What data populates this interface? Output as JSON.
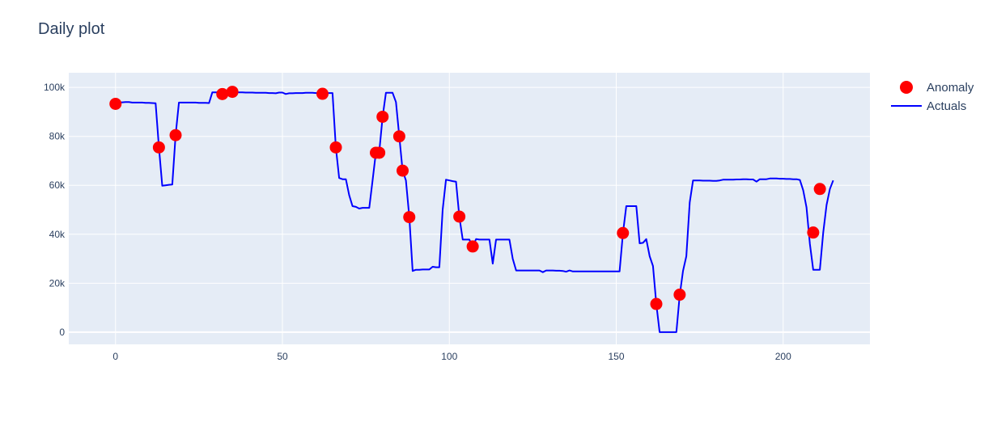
{
  "chart_data": {
    "type": "line",
    "title": "Daily plot",
    "xlabel": "",
    "ylabel": "",
    "xlim": [
      -14,
      226
    ],
    "ylim": [
      -5000,
      106000
    ],
    "x_ticks": [
      0,
      50,
      100,
      150,
      200
    ],
    "x_tick_labels": [
      "0",
      "50",
      "100",
      "150",
      "200"
    ],
    "y_ticks": [
      0,
      20000,
      40000,
      60000,
      80000,
      100000
    ],
    "y_tick_labels": [
      "0",
      "20k",
      "40k",
      "60k",
      "80k",
      "100k"
    ],
    "grid": true,
    "legend_position": "top-right",
    "series": [
      {
        "name": "Actuals",
        "kind": "line",
        "color": "#0000ff",
        "points": [
          [
            0,
            93500
          ],
          [
            1,
            93900
          ],
          [
            2,
            93900
          ],
          [
            3,
            94000
          ],
          [
            4,
            94000
          ],
          [
            5,
            93800
          ],
          [
            6,
            93800
          ],
          [
            7,
            93800
          ],
          [
            8,
            93800
          ],
          [
            9,
            93700
          ],
          [
            10,
            93700
          ],
          [
            11,
            93600
          ],
          [
            12,
            93500
          ],
          [
            13,
            75500
          ],
          [
            14,
            59800
          ],
          [
            15,
            60000
          ],
          [
            16,
            60200
          ],
          [
            17,
            60300
          ],
          [
            18,
            80500
          ],
          [
            19,
            93800
          ],
          [
            20,
            93800
          ],
          [
            21,
            93800
          ],
          [
            22,
            93800
          ],
          [
            23,
            93800
          ],
          [
            24,
            93800
          ],
          [
            25,
            93700
          ],
          [
            26,
            93700
          ],
          [
            27,
            93700
          ],
          [
            28,
            93600
          ],
          [
            29,
            98000
          ],
          [
            30,
            98000
          ],
          [
            31,
            98000
          ],
          [
            32,
            97300
          ],
          [
            33,
            97800
          ],
          [
            34,
            97800
          ],
          [
            35,
            98200
          ],
          [
            36,
            98000
          ],
          [
            37,
            98000
          ],
          [
            38,
            98000
          ],
          [
            39,
            97900
          ],
          [
            40,
            97900
          ],
          [
            41,
            97900
          ],
          [
            42,
            97800
          ],
          [
            43,
            97800
          ],
          [
            44,
            97800
          ],
          [
            45,
            97800
          ],
          [
            46,
            97700
          ],
          [
            47,
            97700
          ],
          [
            48,
            97600
          ],
          [
            49,
            97900
          ],
          [
            50,
            97900
          ],
          [
            51,
            97300
          ],
          [
            52,
            97600
          ],
          [
            53,
            97600
          ],
          [
            54,
            97700
          ],
          [
            55,
            97700
          ],
          [
            56,
            97700
          ],
          [
            57,
            97800
          ],
          [
            58,
            97800
          ],
          [
            59,
            97800
          ],
          [
            60,
            97700
          ],
          [
            61,
            97700
          ],
          [
            62,
            97400
          ],
          [
            63,
            97700
          ],
          [
            64,
            97700
          ],
          [
            65,
            97700
          ],
          [
            66,
            75500
          ],
          [
            67,
            63000
          ],
          [
            68,
            62500
          ],
          [
            69,
            62500
          ],
          [
            70,
            56000
          ],
          [
            71,
            51500
          ],
          [
            72,
            51200
          ],
          [
            73,
            50500
          ],
          [
            74,
            50800
          ],
          [
            75,
            50800
          ],
          [
            76,
            50800
          ],
          [
            77,
            62000
          ],
          [
            78,
            73500
          ],
          [
            79,
            73500
          ],
          [
            80,
            88000
          ],
          [
            81,
            97800
          ],
          [
            82,
            97800
          ],
          [
            83,
            97800
          ],
          [
            84,
            94000
          ],
          [
            85,
            80000
          ],
          [
            86,
            66000
          ],
          [
            87,
            62000
          ],
          [
            88,
            47000
          ],
          [
            89,
            25000
          ],
          [
            90,
            25500
          ],
          [
            91,
            25500
          ],
          [
            92,
            25600
          ],
          [
            93,
            25600
          ],
          [
            94,
            25600
          ],
          [
            95,
            26700
          ],
          [
            96,
            26500
          ],
          [
            97,
            26500
          ],
          [
            98,
            50000
          ],
          [
            99,
            62300
          ],
          [
            100,
            62000
          ],
          [
            101,
            61700
          ],
          [
            102,
            61500
          ],
          [
            103,
            47200
          ],
          [
            104,
            37800
          ],
          [
            105,
            37800
          ],
          [
            106,
            37800
          ],
          [
            107,
            35000
          ],
          [
            108,
            38000
          ],
          [
            109,
            37800
          ],
          [
            110,
            37800
          ],
          [
            111,
            37800
          ],
          [
            112,
            37800
          ],
          [
            113,
            28000
          ],
          [
            114,
            37800
          ],
          [
            115,
            37800
          ],
          [
            116,
            37800
          ],
          [
            117,
            37800
          ],
          [
            118,
            37800
          ],
          [
            119,
            30000
          ],
          [
            120,
            25200
          ],
          [
            121,
            25200
          ],
          [
            122,
            25200
          ],
          [
            123,
            25200
          ],
          [
            124,
            25200
          ],
          [
            125,
            25200
          ],
          [
            126,
            25200
          ],
          [
            127,
            25200
          ],
          [
            128,
            24500
          ],
          [
            129,
            25200
          ],
          [
            130,
            25200
          ],
          [
            131,
            25200
          ],
          [
            132,
            25100
          ],
          [
            133,
            25100
          ],
          [
            134,
            25000
          ],
          [
            135,
            24700
          ],
          [
            136,
            25200
          ],
          [
            137,
            24800
          ],
          [
            138,
            24800
          ],
          [
            139,
            24800
          ],
          [
            140,
            24800
          ],
          [
            141,
            24800
          ],
          [
            142,
            24800
          ],
          [
            143,
            24800
          ],
          [
            144,
            24800
          ],
          [
            145,
            24800
          ],
          [
            146,
            24800
          ],
          [
            147,
            24800
          ],
          [
            148,
            24800
          ],
          [
            149,
            24800
          ],
          [
            150,
            24800
          ],
          [
            151,
            24800
          ],
          [
            152,
            40500
          ],
          [
            153,
            51500
          ],
          [
            154,
            51500
          ],
          [
            155,
            51500
          ],
          [
            156,
            51500
          ],
          [
            157,
            36300
          ],
          [
            158,
            36500
          ],
          [
            159,
            38000
          ],
          [
            160,
            31000
          ],
          [
            161,
            27000
          ],
          [
            162,
            11500
          ],
          [
            163,
            0
          ],
          [
            164,
            0
          ],
          [
            165,
            0
          ],
          [
            166,
            0
          ],
          [
            167,
            0
          ],
          [
            168,
            0
          ],
          [
            169,
            15000
          ],
          [
            170,
            25000
          ],
          [
            171,
            31000
          ],
          [
            172,
            53000
          ],
          [
            173,
            62000
          ],
          [
            174,
            62000
          ],
          [
            175,
            62000
          ],
          [
            176,
            61900
          ],
          [
            177,
            61900
          ],
          [
            178,
            61900
          ],
          [
            179,
            61800
          ],
          [
            180,
            61800
          ],
          [
            181,
            62000
          ],
          [
            182,
            62300
          ],
          [
            183,
            62300
          ],
          [
            184,
            62300
          ],
          [
            185,
            62300
          ],
          [
            186,
            62400
          ],
          [
            187,
            62400
          ],
          [
            188,
            62500
          ],
          [
            189,
            62500
          ],
          [
            190,
            62400
          ],
          [
            191,
            62400
          ],
          [
            192,
            61500
          ],
          [
            193,
            62500
          ],
          [
            194,
            62500
          ],
          [
            195,
            62500
          ],
          [
            196,
            62800
          ],
          [
            197,
            62800
          ],
          [
            198,
            62800
          ],
          [
            199,
            62700
          ],
          [
            200,
            62700
          ],
          [
            201,
            62600
          ],
          [
            202,
            62600
          ],
          [
            203,
            62500
          ],
          [
            204,
            62500
          ],
          [
            205,
            62200
          ],
          [
            206,
            58000
          ],
          [
            207,
            51000
          ],
          [
            208,
            36000
          ],
          [
            209,
            25500
          ],
          [
            210,
            25500
          ],
          [
            211,
            25500
          ],
          [
            212,
            40800
          ],
          [
            213,
            52000
          ],
          [
            214,
            58500
          ],
          [
            215,
            62000
          ]
        ]
      },
      {
        "name": "Anomaly",
        "kind": "scatter",
        "color": "#ff0000",
        "points": [
          [
            0,
            93300
          ],
          [
            13,
            75500
          ],
          [
            18,
            80500
          ],
          [
            32,
            97300
          ],
          [
            35,
            98200
          ],
          [
            62,
            97400
          ],
          [
            66,
            75500
          ],
          [
            78,
            73300
          ],
          [
            79,
            73300
          ],
          [
            80,
            88000
          ],
          [
            85,
            80000
          ],
          [
            86,
            66000
          ],
          [
            88,
            47000
          ],
          [
            103,
            47200
          ],
          [
            107,
            35000
          ],
          [
            152,
            40500
          ],
          [
            162,
            11500
          ],
          [
            169,
            15300
          ],
          [
            209,
            40700
          ],
          [
            211,
            58500
          ]
        ]
      }
    ]
  }
}
